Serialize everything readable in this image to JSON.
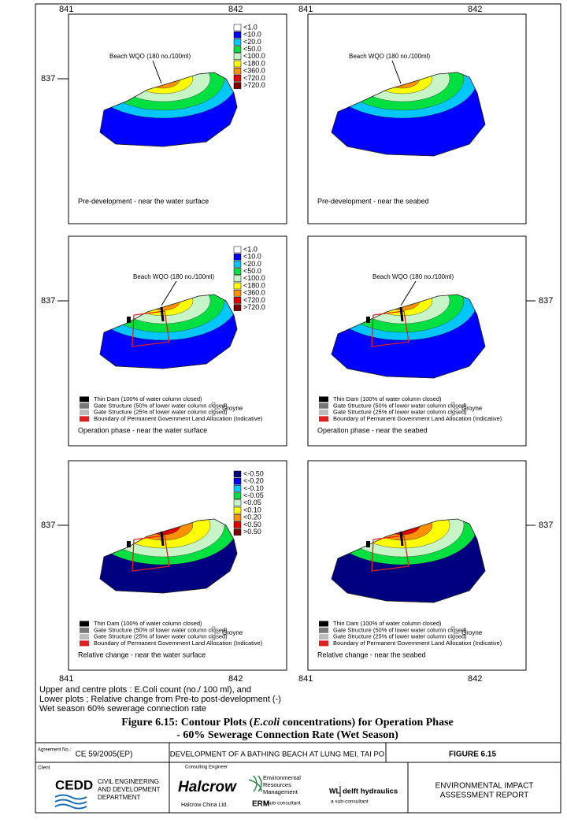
{
  "panels": [
    {
      "caption": "Pre-development - near the water surface"
    },
    {
      "caption": "Pre-development - near the seabed"
    },
    {
      "caption": "Operation phase - near the water surface"
    },
    {
      "caption": "Operation phase - near the seabed"
    },
    {
      "caption": "Relative change - near the water surface"
    },
    {
      "caption": "Relative change - near the seabed"
    }
  ],
  "grid_labels": {
    "x": [
      "841",
      "842"
    ],
    "y": "837"
  },
  "annotation": "Beach WQO (180 no./100ml)",
  "concentration_legend": [
    {
      "label": "<1.0",
      "color": "#ffffff"
    },
    {
      "label": "<10.0",
      "color": "#0000ff"
    },
    {
      "label": "<20.0",
      "color": "#00c8ff"
    },
    {
      "label": "<50.0",
      "color": "#00e040"
    },
    {
      "label": "<100.0",
      "color": "#c8f5c8"
    },
    {
      "label": "<180.0",
      "color": "#ffff00"
    },
    {
      "label": "<360.0",
      "color": "#ff9000"
    },
    {
      "label": "<720.0",
      "color": "#e00000"
    },
    {
      "label": ">720.0",
      "color": "#800000"
    }
  ],
  "relative_legend": [
    {
      "label": "<-0.50",
      "color": "#000080"
    },
    {
      "label": "<-0.20",
      "color": "#0000ff"
    },
    {
      "label": "<-0.10",
      "color": "#00c8ff"
    },
    {
      "label": "<-0.05",
      "color": "#00e040"
    },
    {
      "label": "<0.05",
      "color": "#c8f5c8"
    },
    {
      "label": "<0.10",
      "color": "#ffff00"
    },
    {
      "label": "<0.20",
      "color": "#ff9000"
    },
    {
      "label": "<0.50",
      "color": "#e00000"
    },
    {
      "label": ">0.50",
      "color": "#800000"
    }
  ],
  "structure_legend": {
    "items": [
      {
        "label": "Thin Dam (100% of water column closed)",
        "color": "#000000"
      },
      {
        "label": "Gate Structure (50% of lower water column closed)",
        "color": "#777777"
      },
      {
        "label": "Gate Structure (25% of lower water column closed)",
        "color": "#bbbbbb"
      },
      {
        "label": "Boundary of Permanent Government Land Allocation (Indicative)",
        "color": "#e02020"
      }
    ],
    "group": "Groyne"
  },
  "notes": [
    "Upper and centre plots : E.Coli count (no./ 100 ml), and",
    "Lower plots ; Relative change from Pre-to post-development (-)",
    "Wet season 60% sewerage connection rate"
  ],
  "figure_title": {
    "line1_before": "Figure 6.15:  Contour Plots (",
    "line1_italic": "E.coli",
    "line1_after": " concentrations) for Operation Phase",
    "line2": "- 60% Sewerage Connection Rate (Wet Season)"
  },
  "title_block": {
    "agreement_label": "Agreement No.:",
    "agreement": "CE 59/2005(EP)",
    "project": "DEVELOPMENT OF A BATHING BEACH AT LUNG MEI, TAI PO",
    "figure": "FIGURE 6.15",
    "client_label": "Client",
    "client_logo": "CEDD",
    "client_name": [
      "CIVIL ENGINEERING",
      "AND DEVELOPMENT",
      "DEPARTMENT"
    ],
    "consultant_label": "Consulting Engineer",
    "consultant_logo": "Halcrow",
    "consultant_name": "Halcrow China Ltd.",
    "erm_logo": "ERM",
    "erm_name": [
      "Environmental",
      "Resources",
      "Management"
    ],
    "erm_role": "a sub-consultant",
    "wl_logo": "WL",
    "wl_name": "delft hydraulics",
    "wl_role": "a sub-consultant",
    "report": [
      "ENVIRONMENTAL IMPACT",
      "ASSESSMENT REPORT"
    ]
  }
}
